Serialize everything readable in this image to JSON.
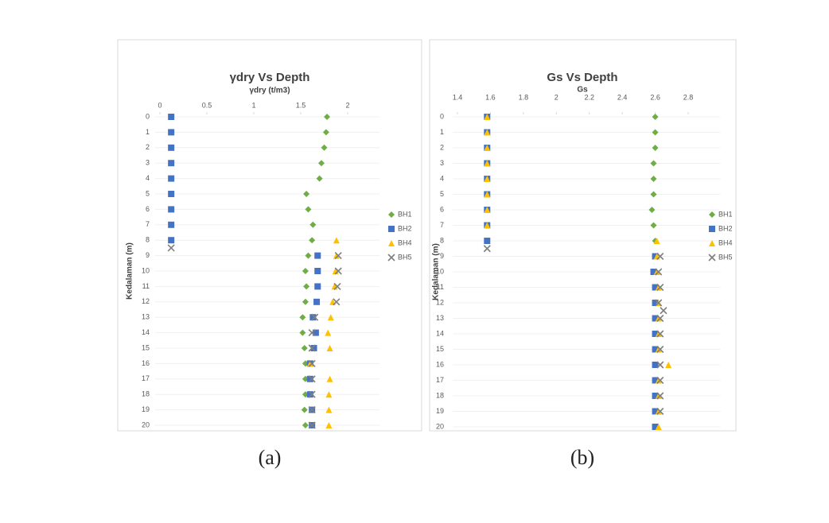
{
  "chart_data": [
    {
      "type": "scatter",
      "title": "γdry Vs Depth",
      "x_label": "γdry (t/m3)",
      "y_label": "Kedalaman (m)",
      "caption": "(a)",
      "xlim": [
        0,
        2
      ],
      "xticks": [
        0,
        0.5,
        1,
        1.5,
        2
      ],
      "ylim": [
        0,
        20
      ],
      "yticks": [
        0,
        1,
        2,
        3,
        4,
        5,
        6,
        7,
        8,
        9,
        10,
        11,
        12,
        13,
        14,
        15,
        16,
        17,
        18,
        19,
        20
      ],
      "y_inverted": true,
      "grid": true,
      "series": [
        {
          "name": "BH1",
          "color": "#70ad47",
          "marker": "diamond",
          "x": [
            1.78,
            1.77,
            1.75,
            1.72,
            1.7,
            1.56,
            1.58,
            1.63,
            1.62,
            1.58,
            1.55,
            1.56,
            1.55,
            1.52,
            1.52,
            1.54,
            1.55,
            1.55,
            1.55,
            1.54,
            1.55
          ],
          "y": [
            0,
            1,
            2,
            3,
            4,
            5,
            6,
            7,
            8,
            9,
            10,
            11,
            12,
            13,
            14,
            15,
            16,
            17,
            18,
            19,
            20
          ]
        },
        {
          "name": "BH2",
          "color": "#4472c4",
          "marker": "square",
          "x": [
            0.12,
            0.12,
            0.12,
            0.12,
            0.12,
            0.12,
            0.12,
            0.12,
            0.12,
            1.68,
            1.68,
            1.68,
            1.67,
            1.63,
            1.66,
            1.64,
            1.6,
            1.6,
            1.6,
            1.62,
            1.62
          ],
          "y": [
            0,
            1,
            2,
            3,
            4,
            5,
            6,
            7,
            8,
            9,
            10,
            11,
            12,
            13,
            14,
            15,
            16,
            17,
            18,
            19,
            20
          ]
        },
        {
          "name": "BH4",
          "color": "#ffc000",
          "marker": "triangle",
          "x": [
            1.88,
            1.88,
            1.87,
            1.86,
            1.84,
            1.82,
            1.79,
            1.81,
            1.6,
            1.81,
            1.8,
            1.8,
            1.8
          ],
          "y": [
            8,
            9,
            10,
            11,
            12,
            13,
            14,
            15,
            16,
            17,
            18,
            19,
            20
          ]
        },
        {
          "name": "BH5",
          "color": "#7f7f7f",
          "marker": "x",
          "x": [
            0.12,
            1.9,
            1.9,
            1.89,
            1.88,
            1.65,
            1.62,
            1.62,
            1.62,
            1.62,
            1.62,
            1.62,
            1.62
          ],
          "y": [
            8.5,
            9,
            10,
            11,
            12,
            13,
            14,
            15,
            16,
            17,
            18,
            19,
            20
          ]
        }
      ]
    },
    {
      "type": "scatter",
      "title": "Gs Vs Depth",
      "x_label": "Gs",
      "y_label": "Kedalaman (m)",
      "caption": "(b)",
      "xlim": [
        1.4,
        2.8
      ],
      "xticks": [
        1.4,
        1.6,
        1.8,
        2,
        2.2,
        2.4,
        2.6,
        2.8
      ],
      "ylim": [
        0,
        20
      ],
      "yticks": [
        0,
        1,
        2,
        3,
        4,
        5,
        6,
        7,
        8,
        9,
        10,
        11,
        12,
        13,
        14,
        15,
        16,
        17,
        18,
        19,
        20
      ],
      "y_inverted": true,
      "grid": true,
      "series": [
        {
          "name": "BH1",
          "color": "#70ad47",
          "marker": "diamond",
          "x": [
            2.6,
            2.6,
            2.6,
            2.59,
            2.59,
            2.59,
            2.58,
            2.59,
            2.6,
            2.6,
            2.6,
            2.6,
            2.6,
            2.6,
            2.6,
            2.6,
            2.6,
            2.6,
            2.6,
            2.6,
            2.6
          ],
          "y": [
            0,
            1,
            2,
            3,
            4,
            5,
            6,
            7,
            8,
            9,
            10,
            11,
            12,
            13,
            14,
            15,
            16,
            17,
            18,
            19,
            20
          ]
        },
        {
          "name": "BH2",
          "color": "#4472c4",
          "marker": "square",
          "x": [
            1.58,
            1.58,
            1.58,
            1.58,
            1.58,
            1.58,
            1.58,
            1.58,
            1.58,
            2.6,
            2.59,
            2.6,
            2.6,
            2.6,
            2.6,
            2.6,
            2.6,
            2.6,
            2.6,
            2.6,
            2.6
          ],
          "y": [
            0,
            1,
            2,
            3,
            4,
            5,
            6,
            7,
            8,
            9,
            10,
            11,
            12,
            13,
            14,
            15,
            16,
            17,
            18,
            19,
            20
          ]
        },
        {
          "name": "BH4",
          "color": "#ffc000",
          "marker": "triangle",
          "x": [
            1.58,
            1.58,
            1.58,
            1.58,
            1.58,
            1.58,
            1.58,
            1.58,
            2.61,
            2.61,
            2.61,
            2.62,
            2.62,
            2.62,
            2.62,
            2.62,
            2.68,
            2.62,
            2.62,
            2.62,
            2.62
          ],
          "y": [
            0,
            1,
            2,
            3,
            4,
            5,
            6,
            7,
            8,
            9,
            10,
            11,
            12,
            13,
            14,
            15,
            16,
            17,
            18,
            19,
            20
          ]
        },
        {
          "name": "BH5",
          "color": "#7f7f7f",
          "marker": "x",
          "x": [
            1.58,
            2.63,
            2.62,
            2.63,
            2.62,
            2.65,
            2.63,
            2.63,
            2.63,
            2.63,
            2.63,
            2.63,
            2.63
          ],
          "y": [
            8.5,
            9,
            10,
            11,
            12,
            12.5,
            13,
            14,
            15,
            16,
            17,
            18,
            19
          ]
        }
      ]
    }
  ]
}
